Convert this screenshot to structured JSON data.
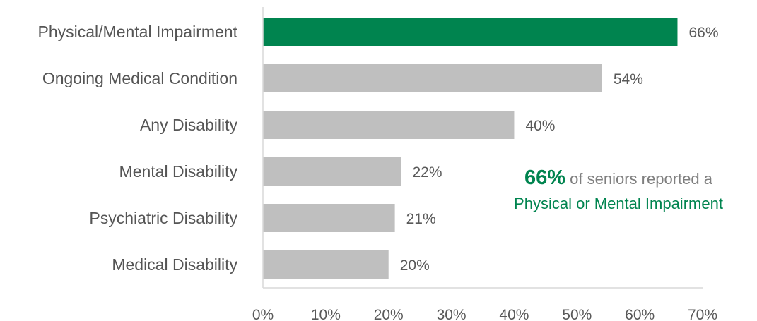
{
  "colors": {
    "highlight": "#00844f",
    "bar": "#bfbfbf",
    "axis": "#d9d9d9",
    "text": "#595959"
  },
  "chart_data": {
    "type": "bar",
    "orientation": "horizontal",
    "categories": [
      "Physical/Mental Impairment",
      "Ongoing Medical Condition",
      "Any Disability",
      "Mental Disability",
      "Psychiatric Disability",
      "Medical Disability"
    ],
    "values": [
      66,
      54,
      40,
      22,
      21,
      20
    ],
    "value_labels": [
      "66%",
      "54%",
      "40%",
      "22%",
      "21%",
      "20%"
    ],
    "highlight_index": 0,
    "xlim": [
      0,
      70
    ],
    "xticks": [
      0,
      10,
      20,
      30,
      40,
      50,
      60,
      70
    ],
    "xtick_labels": [
      "0%",
      "10%",
      "20%",
      "30%",
      "40%",
      "50%",
      "60%",
      "70%"
    ],
    "title": "",
    "xlabel": "",
    "ylabel": "",
    "grid": false,
    "legend": "none"
  },
  "annotation": {
    "highlight_value": "66%",
    "text_before": " of seniors reported a",
    "emphasis": "Physical or Mental Impairment"
  }
}
